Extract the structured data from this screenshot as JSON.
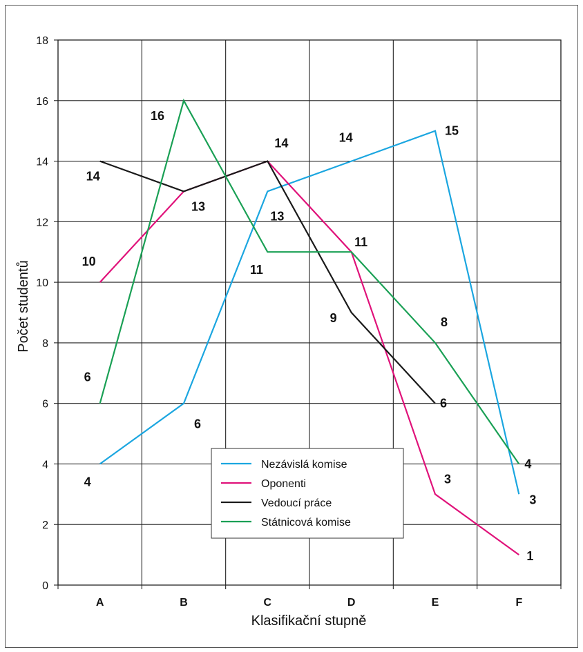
{
  "chart_data": {
    "type": "line",
    "title": "",
    "xlabel": "Klasifikační stupně",
    "ylabel": "Počet studentů",
    "categories": [
      "A",
      "B",
      "C",
      "D",
      "E",
      "F"
    ],
    "ylim": [
      0,
      18
    ],
    "yticks": [
      "0",
      "2",
      "4",
      "6",
      "8",
      "10",
      "12",
      "14",
      "16",
      "18"
    ],
    "grid": true,
    "legend_position": "bottom-center",
    "series": [
      {
        "name": "Nezávislá komise",
        "color": "#1ba6e0",
        "values": [
          4,
          6,
          13,
          14,
          15,
          3
        ],
        "labels": [
          "4",
          "6",
          "13",
          "14",
          "15",
          "3"
        ]
      },
      {
        "name": "Oponenti",
        "color": "#e0127a",
        "values": [
          10,
          13,
          14,
          11,
          3,
          1
        ],
        "labels": [
          "10",
          "",
          "",
          "",
          "3",
          "1"
        ]
      },
      {
        "name": "Vedoucí práce",
        "color": "#1a1a1a",
        "values": [
          14,
          13,
          14,
          9,
          6,
          null
        ],
        "labels": [
          "14",
          "13",
          "14",
          "9",
          "6",
          ""
        ]
      },
      {
        "name": "Státnicová komise",
        "color": "#1aa055",
        "values": [
          6,
          16,
          11,
          11,
          8,
          4
        ],
        "labels": [
          "6",
          "16",
          "11",
          "11",
          "8",
          "4"
        ]
      }
    ]
  }
}
